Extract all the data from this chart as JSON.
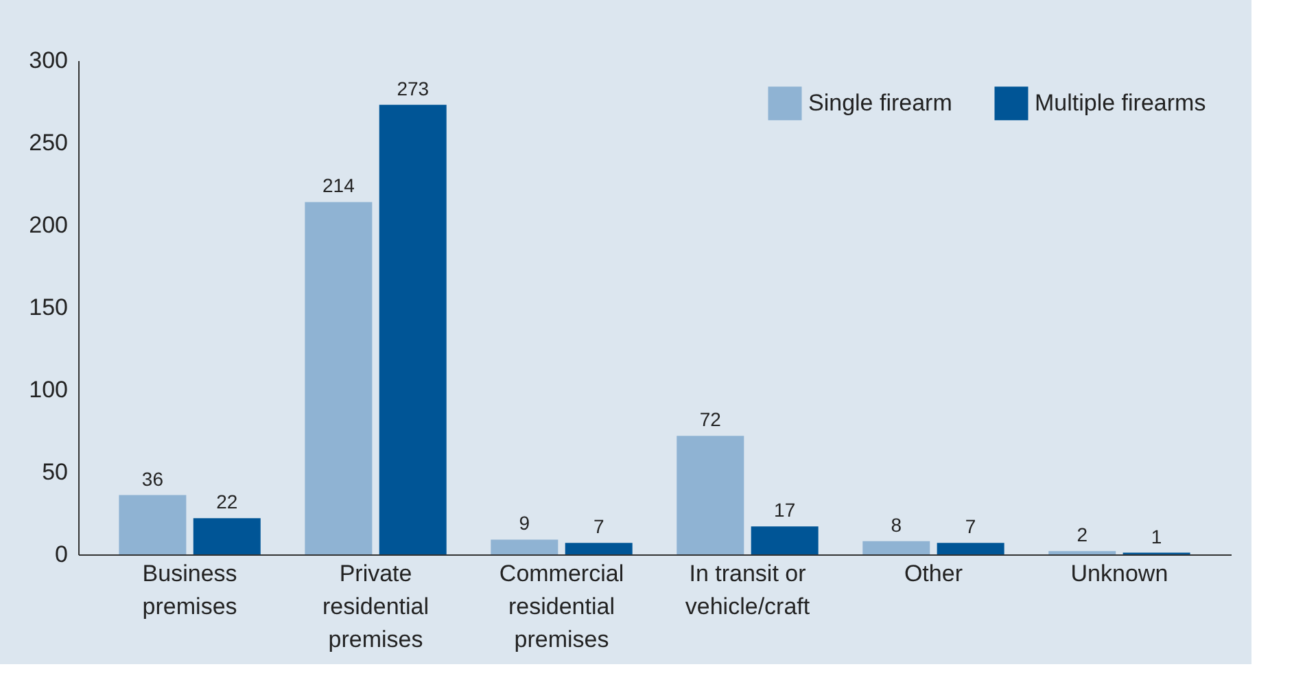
{
  "chart_data": {
    "type": "bar",
    "categories": [
      "Business premises",
      "Private residential premises",
      "Commercial residential premises",
      "In transit or vehicle/craft",
      "Other",
      "Unknown"
    ],
    "series": [
      {
        "name": "Single firearm",
        "color": "#8fb3d3",
        "values": [
          36,
          214,
          9,
          72,
          8,
          2
        ]
      },
      {
        "name": "Multiple firearms",
        "color": "#005596",
        "values": [
          22,
          273,
          7,
          17,
          7,
          1
        ]
      }
    ],
    "ylim": [
      0,
      300
    ],
    "yticks": [
      0,
      50,
      100,
      150,
      200,
      250,
      300
    ],
    "data_labels": true,
    "grid": false,
    "legend": "top right"
  }
}
